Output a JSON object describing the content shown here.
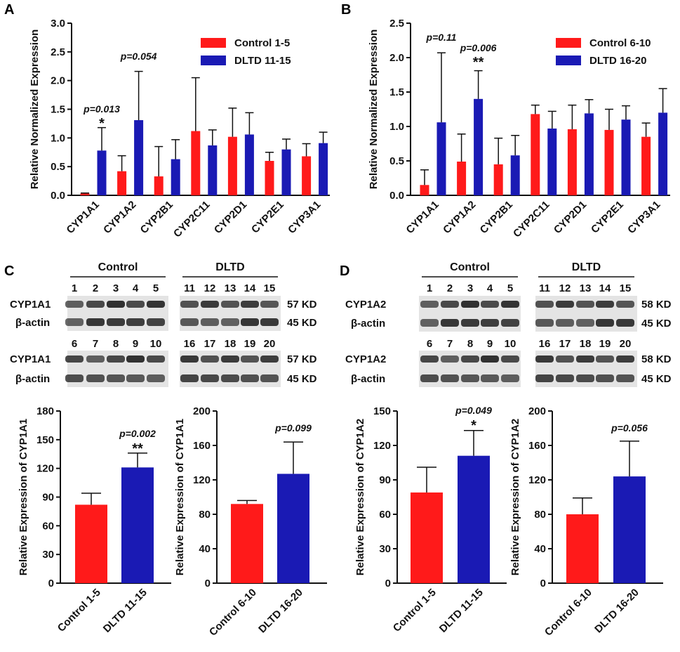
{
  "colors": {
    "control": "#ff1a1a",
    "dltd": "#1a1ab4",
    "axis": "#111111",
    "band": "#2a2a2a",
    "blot_bg": "#e4e4e4"
  },
  "panels": {
    "a": "A",
    "b": "B",
    "c": "C",
    "d": "D"
  },
  "chart_data": [
    {
      "id": "A",
      "type": "bar",
      "ylabel": "Relative Normalized Expression",
      "ylim": [
        0,
        3.0
      ],
      "ticks": [
        "0.0",
        "0.5",
        "1.0",
        "1.5",
        "2.0",
        "2.5",
        "3.0"
      ],
      "categories": [
        "CYP1A1",
        "CYP1A2",
        "CYP2B1",
        "CYP2C11",
        "CYP2D1",
        "CYP2E1",
        "CYP3A1"
      ],
      "series": [
        {
          "name": "Control 1-5",
          "color": "#ff1a1a",
          "values": [
            0.03,
            0.42,
            0.33,
            1.12,
            1.02,
            0.6,
            0.68
          ],
          "errors": [
            0.01,
            0.27,
            0.52,
            0.93,
            0.5,
            0.15,
            0.22
          ]
        },
        {
          "name": "DLTD 11-15",
          "color": "#1a1ab4",
          "values": [
            0.78,
            1.31,
            0.63,
            0.87,
            1.06,
            0.8,
            0.91
          ],
          "errors": [
            0.4,
            0.85,
            0.34,
            0.27,
            0.38,
            0.18,
            0.19
          ]
        }
      ],
      "annotations": [
        {
          "category": 0,
          "p": "p=0.013",
          "star": "*"
        },
        {
          "category": 1,
          "p": "p=0.054",
          "star": ""
        }
      ],
      "legend": "top-right"
    },
    {
      "id": "B",
      "type": "bar",
      "ylabel": "Relative Normalized Expression",
      "ylim": [
        0,
        2.5
      ],
      "ticks": [
        "0.0",
        "0.5",
        "1.0",
        "1.5",
        "2.0",
        "2.5"
      ],
      "categories": [
        "CYP1A1",
        "CYP1A2",
        "CYP2B1",
        "CYP2C11",
        "CYP2D1",
        "CYP2E1",
        "CYP3A1"
      ],
      "series": [
        {
          "name": "Control 6-10",
          "color": "#ff1a1a",
          "values": [
            0.15,
            0.49,
            0.45,
            1.18,
            0.96,
            0.95,
            0.85
          ],
          "errors": [
            0.22,
            0.4,
            0.38,
            0.13,
            0.35,
            0.3,
            0.2
          ]
        },
        {
          "name": "DLTD 16-20",
          "color": "#1a1ab4",
          "values": [
            1.06,
            1.4,
            0.58,
            0.97,
            1.19,
            1.1,
            1.2
          ],
          "errors": [
            1.01,
            0.41,
            0.29,
            0.25,
            0.2,
            0.2,
            0.35
          ]
        }
      ],
      "annotations": [
        {
          "category": 0,
          "p": "p=0.11",
          "star": ""
        },
        {
          "category": 1,
          "p": "p=0.006",
          "star": "**"
        }
      ],
      "legend": "top-right"
    },
    {
      "id": "C1",
      "type": "bar",
      "ylabel": "Relative Expression of CYP1A1",
      "ylim": [
        0,
        180
      ],
      "ticks": [
        "0",
        "30",
        "60",
        "90",
        "120",
        "150",
        "180"
      ],
      "categories": [
        "Control 1-5",
        "DLTD 11-15"
      ],
      "values": [
        82,
        121
      ],
      "errors": [
        12,
        15
      ],
      "p": "p=0.002",
      "star": "**"
    },
    {
      "id": "C2",
      "type": "bar",
      "ylabel": "Relative Expression of CYP1A1",
      "ylim": [
        0,
        200
      ],
      "ticks": [
        "0",
        "40",
        "80",
        "120",
        "160",
        "200"
      ],
      "categories": [
        "Control 6-10",
        "DLTD 16-20"
      ],
      "values": [
        92,
        127
      ],
      "errors": [
        4,
        37
      ],
      "p": "p=0.099",
      "star": ""
    },
    {
      "id": "D1",
      "type": "bar",
      "ylabel": "Relative Expression of CYP1A2",
      "ylim": [
        0,
        150
      ],
      "ticks": [
        "0",
        "30",
        "60",
        "90",
        "120",
        "150"
      ],
      "categories": [
        "Control 1-5",
        "DLTD 11-15"
      ],
      "values": [
        79,
        111
      ],
      "errors": [
        22,
        22
      ],
      "p": "p=0.049",
      "star": "*"
    },
    {
      "id": "D2",
      "type": "bar",
      "ylabel": "Relative Expression of CYP1A2",
      "ylim": [
        0,
        200
      ],
      "ticks": [
        "0",
        "40",
        "80",
        "120",
        "160",
        "200"
      ],
      "categories": [
        "Control 6-10",
        "DLTD 16-20"
      ],
      "values": [
        80,
        124
      ],
      "errors": [
        19,
        41
      ],
      "p": "p=0.056",
      "star": ""
    }
  ],
  "blots": [
    {
      "id": "C",
      "group_control": "Control",
      "group_dltd": "DLTD",
      "rows": [
        {
          "lanes_control": [
            "1",
            "2",
            "3",
            "4",
            "5"
          ],
          "lanes_dltd": [
            "11",
            "12",
            "13",
            "14",
            "15"
          ],
          "target": "CYP1A1",
          "target_kd": "57 KD",
          "actin": "β-actin",
          "actin_kd": "45 KD"
        },
        {
          "lanes_control": [
            "6",
            "7",
            "8",
            "9",
            "10"
          ],
          "lanes_dltd": [
            "16",
            "17",
            "18",
            "19",
            "20"
          ],
          "target": "CYP1A1",
          "target_kd": "57 KD",
          "actin": "β-actin",
          "actin_kd": "45 KD"
        }
      ]
    },
    {
      "id": "D",
      "group_control": "Control",
      "group_dltd": "DLTD",
      "rows": [
        {
          "lanes_control": [
            "1",
            "2",
            "3",
            "4",
            "5"
          ],
          "lanes_dltd": [
            "11",
            "12",
            "13",
            "14",
            "15"
          ],
          "target": "CYP1A2",
          "target_kd": "58 KD",
          "actin": "β-actin",
          "actin_kd": "45 KD"
        },
        {
          "lanes_control": [
            "6",
            "7",
            "8",
            "9",
            "10"
          ],
          "lanes_dltd": [
            "16",
            "17",
            "18",
            "19",
            "20"
          ],
          "target": "CYP1A2",
          "target_kd": "58 KD",
          "actin": "β-actin",
          "actin_kd": "45 KD"
        }
      ]
    }
  ]
}
